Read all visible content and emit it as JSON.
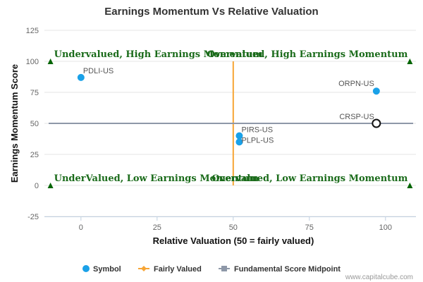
{
  "chart_data": {
    "type": "scatter",
    "title": "Earnings Momentum Vs Relative Valuation",
    "xlabel": "Relative Valuation (50 = fairly valued)",
    "ylabel": "Earnings Momentum Score",
    "xlim": [
      -12,
      110
    ],
    "ylim": [
      -25,
      125
    ],
    "xticks": [
      0,
      25,
      50,
      75,
      100
    ],
    "yticks": [
      -25,
      0,
      25,
      50,
      75,
      100,
      125
    ],
    "grid": "horizontal",
    "points": [
      {
        "label": "PDLI-US",
        "x": 0,
        "y": 87,
        "style": "filled"
      },
      {
        "label": "ORPN-US",
        "x": 97,
        "y": 76,
        "style": "filled"
      },
      {
        "label": "CRSP-US",
        "x": 97,
        "y": 50,
        "style": "hollow"
      },
      {
        "label": "PIRS-US",
        "x": 52,
        "y": 40,
        "style": "filled"
      },
      {
        "label": "PLPL-US",
        "x": 52,
        "y": 35,
        "style": "filled"
      }
    ],
    "fairly_valued_x": 50,
    "midpoint_y": 50,
    "quadrants": [
      {
        "text": "Undervalued, High Earnings Momentum",
        "x": -10,
        "y": 100
      },
      {
        "text": "Overvalued, High Earnings Momentum",
        "x": 108,
        "y": 100
      },
      {
        "text": "UnderValued, Low Earnings Momentum",
        "x": -10,
        "y": 0
      },
      {
        "text": "Overvalued, Low Earnings Momentum",
        "x": 108,
        "y": 0
      }
    ],
    "legend": {
      "placement": "bottom",
      "items": [
        {
          "name": "Symbol",
          "color": "#1aa1e8",
          "shape": "circle"
        },
        {
          "name": "Fairly Valued",
          "color": "#f7a535",
          "shape": "line-diamond"
        },
        {
          "name": "Fundamental Score Midpoint",
          "color": "#8e98a8",
          "shape": "line-square"
        }
      ]
    },
    "credit": "www.capitalcube.com",
    "colors": {
      "point": "#1aa1e8",
      "fairly_valued": "#f7a535",
      "midpoint": "#8e98a8",
      "quadrant_text": "#1a6b1a",
      "marker": "#006400"
    }
  }
}
